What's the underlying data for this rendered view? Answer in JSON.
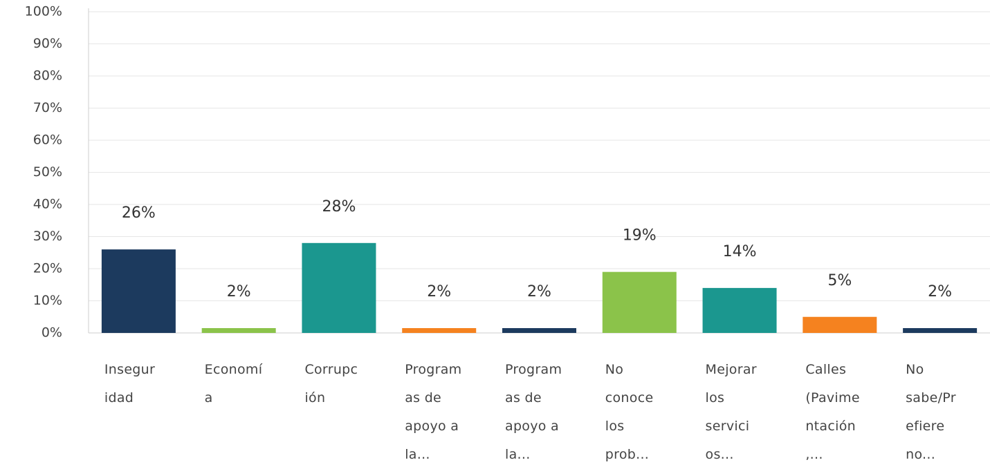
{
  "chart_data": {
    "type": "bar",
    "categories": [
      "Insegur\nidad",
      "Economí\na",
      "Corrupc\nión",
      "Program\nas de\napoyo a\nla...",
      "Program\nas de\napoyo a\nla...",
      "No\nconoce\nlos\nprob...",
      "Mejorar\nlos\nservici\nos...",
      "Calles\n(Pavime\nntación\n,...",
      "No\nsabe/Pr\nefiere\nno..."
    ],
    "values": [
      26,
      1.5,
      28,
      1.5,
      1.5,
      19,
      14,
      5,
      1.5
    ],
    "value_labels": [
      "26%",
      "2%",
      "28%",
      "2%",
      "2%",
      "19%",
      "14%",
      "5%",
      "2%"
    ],
    "colors": [
      "#1c3a5e",
      "#8bc34a",
      "#1b978f",
      "#f5821f",
      "#1c3a5e",
      "#8bc34a",
      "#1b978f",
      "#f5821f",
      "#1c3a5e"
    ],
    "ylim": [
      0,
      100
    ],
    "yticks": [
      {
        "value": 0,
        "label": "0%"
      },
      {
        "value": 10,
        "label": "10%"
      },
      {
        "value": 20,
        "label": "20%"
      },
      {
        "value": 30,
        "label": "30%"
      },
      {
        "value": 40,
        "label": "40%"
      },
      {
        "value": 50,
        "label": "50%"
      },
      {
        "value": 60,
        "label": "60%"
      },
      {
        "value": 70,
        "label": "70%"
      },
      {
        "value": 80,
        "label": "80%"
      },
      {
        "value": 90,
        "label": "90%"
      },
      {
        "value": 100,
        "label": "100%"
      }
    ],
    "grid": true
  }
}
